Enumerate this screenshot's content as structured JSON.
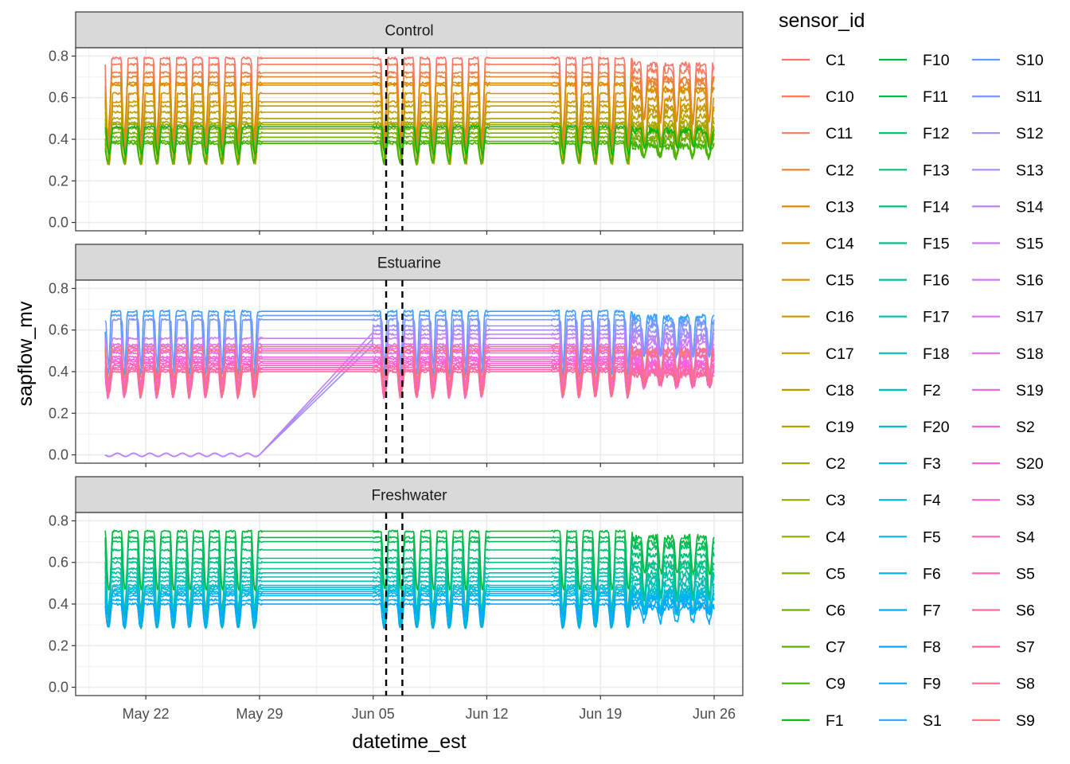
{
  "chart_data": {
    "type": "line",
    "facet_variable": "site",
    "facets": [
      {
        "name": "Control",
        "sensors": [
          "C1",
          "C10",
          "C11",
          "C12",
          "C13",
          "C14",
          "C15",
          "C16",
          "C17",
          "C18",
          "C19",
          "C2",
          "C3",
          "C4",
          "C5",
          "C6",
          "C7",
          "C9",
          "F1"
        ],
        "baseline_levels": [
          0.79,
          0.76,
          0.72,
          0.7,
          0.67,
          0.66,
          0.62,
          0.58,
          0.56,
          0.53,
          0.5,
          0.48,
          0.47,
          0.45,
          0.43,
          0.41,
          0.39,
          0.38,
          0.46
        ],
        "diurnal_minimum": 0.27
      },
      {
        "name": "Estuarine",
        "sensors": [
          "S1",
          "S10",
          "S11",
          "S12",
          "S13",
          "S14",
          "S15",
          "S16",
          "S17",
          "S18",
          "S19",
          "S2",
          "S20",
          "S3",
          "S4",
          "S5",
          "S6",
          "S7",
          "S8",
          "S9"
        ],
        "baseline_levels": [
          0.69,
          0.67,
          0.65,
          0.62,
          0.6,
          0.58,
          0.56,
          0.53,
          0.51,
          0.49,
          0.47,
          0.46,
          0.45,
          0.44,
          0.43,
          0.42,
          0.41,
          0.4,
          0.5,
          0.52
        ],
        "diurnal_minimum": 0.27,
        "annotations": "Three sensors (S12, S13, S14) read about 0.0 from May 19 to May 29, then rise to about 0.5 by Jun 5"
      },
      {
        "name": "Freshwater",
        "sensors": [
          "F10",
          "F11",
          "F12",
          "F13",
          "F14",
          "F15",
          "F16",
          "F17",
          "F18",
          "F2",
          "F20",
          "F3",
          "F4",
          "F5",
          "F6",
          "F7",
          "F8",
          "F9"
        ],
        "baseline_levels": [
          0.75,
          0.72,
          0.7,
          0.66,
          0.62,
          0.6,
          0.57,
          0.55,
          0.53,
          0.51,
          0.49,
          0.48,
          0.47,
          0.46,
          0.45,
          0.44,
          0.42,
          0.4
        ],
        "diurnal_minimum": 0.28
      }
    ],
    "x_range": [
      "2024-05-19",
      "2024-06-26"
    ],
    "x_ticks": [
      "May 22",
      "May 29",
      "Jun 05",
      "Jun 12",
      "Jun 19",
      "Jun 26"
    ],
    "data_gaps": [
      [
        "May 29",
        "Jun 05"
      ],
      [
        "Jun 12",
        "Jun 16"
      ]
    ],
    "event_lines": [
      "2024-06-06",
      "2024-06-07"
    ],
    "ylim": [
      -0.04,
      0.84
    ],
    "y_ticks": [
      "0.0",
      "0.2",
      "0.4",
      "0.6",
      "0.8"
    ],
    "xlabel": "datetime_est",
    "ylabel": "sapflow_mv",
    "legend": {
      "title": "sensor_id",
      "position": "right",
      "columns": [
        [
          "C1",
          "C10",
          "C11",
          "C12",
          "C13",
          "C14",
          "C15",
          "C16",
          "C17",
          "C18",
          "C19",
          "C2",
          "C3",
          "C4",
          "C5",
          "C6",
          "C7",
          "C9",
          "F1"
        ],
        [
          "F10",
          "F11",
          "F12",
          "F13",
          "F14",
          "F15",
          "F16",
          "F17",
          "F18",
          "F2",
          "F20",
          "F3",
          "F4",
          "F5",
          "F6",
          "F7",
          "F8",
          "F9",
          "S1"
        ],
        [
          "S10",
          "S11",
          "S12",
          "S13",
          "S14",
          "S15",
          "S16",
          "S17",
          "S18",
          "S19",
          "S2",
          "S20",
          "S3",
          "S4",
          "S5",
          "S6",
          "S7",
          "S8",
          "S9"
        ]
      ]
    },
    "grid": true,
    "theme": "bw"
  }
}
